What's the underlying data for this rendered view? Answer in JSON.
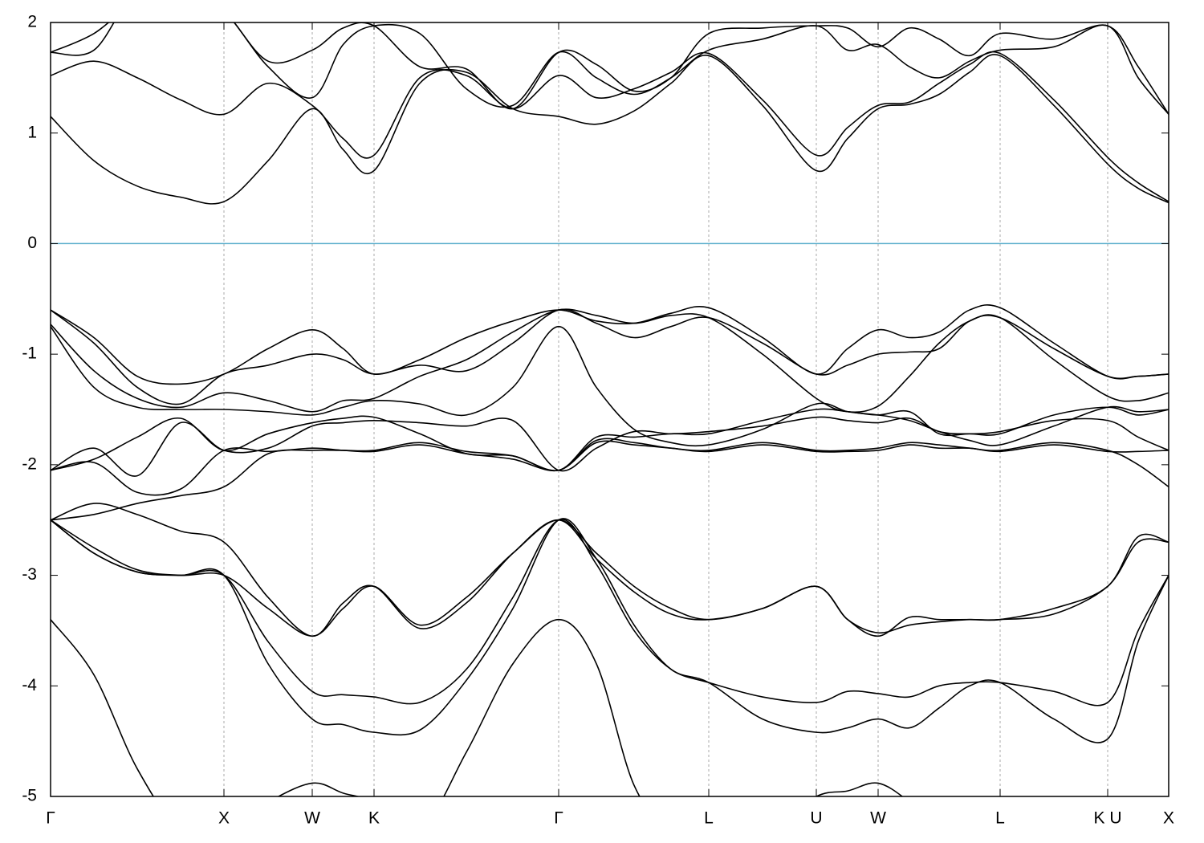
{
  "chart_data": {
    "type": "line",
    "xlim": [
      0,
      13.93
    ],
    "ylim": [
      -5,
      2
    ],
    "yticks": [
      -5,
      -4,
      -3,
      -2,
      -1,
      0,
      1,
      2
    ],
    "xticks": [
      {
        "value": 0,
        "label": "Γ"
      },
      {
        "value": 2.16,
        "label": "X"
      },
      {
        "value": 3.26,
        "label": "W"
      },
      {
        "value": 4.03,
        "label": "K"
      },
      {
        "value": 6.33,
        "label": "Γ"
      },
      {
        "value": 8.2,
        "label": "L"
      },
      {
        "value": 9.54,
        "label": "U"
      },
      {
        "value": 10.31,
        "label": "W"
      },
      {
        "value": 11.83,
        "label": "L"
      },
      {
        "value": 13.17,
        "label": "K U"
      },
      {
        "value": 13.93,
        "label": "X"
      }
    ],
    "xgrid": true,
    "line_color": "#000000",
    "reference_line": 0,
    "reference_color": "#5aaecb",
    "x": [
      0,
      0.54,
      1.08,
      1.62,
      2.16,
      2.71,
      3.26,
      3.645,
      4.03,
      4.6,
      5.18,
      5.76,
      6.33,
      6.8,
      7.27,
      7.73,
      8.2,
      8.87,
      9.54,
      9.93,
      10.31,
      10.7,
      11.07,
      11.45,
      11.83,
      12.5,
      13.17,
      13.55,
      13.93
    ],
    "series": [
      {
        "values": [
          1.15,
          0.75,
          0.52,
          0.42,
          0.38,
          0.75,
          1.22,
          0.85,
          0.66,
          1.45,
          1.55,
          1.22,
          1.15,
          1.08,
          1.2,
          1.45,
          1.7,
          1.25,
          0.66,
          0.95,
          1.22,
          1.26,
          1.35,
          1.55,
          1.7,
          1.25,
          0.72,
          0.5,
          0.37
        ]
      },
      {
        "values": [
          1.52,
          1.65,
          1.5,
          1.3,
          1.17,
          1.45,
          1.25,
          0.95,
          0.8,
          1.5,
          1.52,
          1.22,
          1.52,
          1.32,
          1.4,
          1.55,
          1.72,
          1.3,
          0.8,
          1.05,
          1.25,
          1.28,
          1.45,
          1.62,
          1.72,
          1.3,
          0.78,
          0.55,
          0.38
        ]
      },
      {
        "values": [
          1.73,
          1.9,
          2.2,
          2.3,
          2.1,
          1.6,
          1.32,
          1.8,
          1.97,
          1.9,
          1.4,
          1.25,
          1.73,
          1.5,
          1.35,
          1.5,
          1.75,
          1.85,
          1.97,
          1.75,
          1.8,
          1.6,
          1.5,
          1.65,
          1.75,
          1.78,
          1.97,
          1.5,
          1.17
        ]
      },
      {
        "values": [
          1.73,
          1.75,
          2.3,
          2.3,
          2.1,
          1.65,
          1.75,
          1.95,
          1.97,
          1.6,
          1.58,
          1.22,
          1.73,
          1.62,
          1.38,
          1.5,
          1.9,
          1.95,
          1.97,
          1.95,
          1.78,
          1.95,
          1.85,
          1.7,
          1.9,
          1.85,
          1.97,
          1.6,
          1.17
        ]
      },
      {
        "values": [
          -0.6,
          -0.85,
          -1.2,
          -1.27,
          -1.18,
          -0.95,
          -0.78,
          -0.95,
          -1.18,
          -1.05,
          -0.85,
          -0.7,
          -0.6,
          -0.7,
          -0.72,
          -0.63,
          -0.58,
          -0.85,
          -1.18,
          -0.95,
          -0.78,
          -0.85,
          -0.8,
          -0.6,
          -0.58,
          -0.9,
          -1.2,
          -1.2,
          -1.18
        ]
      },
      {
        "values": [
          -0.6,
          -0.9,
          -1.3,
          -1.45,
          -1.18,
          -1.1,
          -1.0,
          -1.05,
          -1.18,
          -1.1,
          -1.15,
          -0.9,
          -0.6,
          -0.72,
          -0.85,
          -0.75,
          -0.67,
          -0.9,
          -1.18,
          -1.1,
          -1.0,
          -0.98,
          -0.95,
          -0.7,
          -0.67,
          -0.95,
          -1.2,
          -1.2,
          -1.18
        ]
      },
      {
        "values": [
          -0.73,
          -1.15,
          -1.4,
          -1.48,
          -1.35,
          -1.42,
          -1.52,
          -1.42,
          -1.4,
          -1.2,
          -1.05,
          -0.8,
          -0.6,
          -0.65,
          -0.72,
          -0.65,
          -0.67,
          -1.0,
          -1.4,
          -1.52,
          -1.47,
          -1.2,
          -0.9,
          -0.7,
          -0.67,
          -1.05,
          -1.38,
          -1.42,
          -1.35
        ]
      },
      {
        "values": [
          -0.75,
          -1.3,
          -1.48,
          -1.5,
          -1.5,
          -1.52,
          -1.55,
          -1.48,
          -1.42,
          -1.45,
          -1.55,
          -1.3,
          -0.75,
          -1.3,
          -1.68,
          -1.8,
          -1.82,
          -1.68,
          -1.45,
          -1.52,
          -1.55,
          -1.6,
          -1.7,
          -1.78,
          -1.82,
          -1.65,
          -1.48,
          -1.52,
          -1.5
        ]
      },
      {
        "values": [
          -2.05,
          -1.85,
          -2.1,
          -1.62,
          -1.87,
          -1.85,
          -1.65,
          -1.62,
          -1.6,
          -1.62,
          -1.65,
          -1.6,
          -2.05,
          -1.85,
          -1.7,
          -1.72,
          -1.7,
          -1.65,
          -1.57,
          -1.6,
          -1.62,
          -1.58,
          -1.7,
          -1.72,
          -1.7,
          -1.6,
          -1.6,
          -1.75,
          -1.87
        ]
      },
      {
        "values": [
          -2.05,
          -1.95,
          -1.75,
          -1.58,
          -1.87,
          -1.72,
          -1.62,
          -1.58,
          -1.57,
          -1.72,
          -1.9,
          -1.92,
          -2.05,
          -1.75,
          -1.75,
          -1.72,
          -1.72,
          -1.6,
          -1.5,
          -1.52,
          -1.55,
          -1.52,
          -1.72,
          -1.72,
          -1.72,
          -1.55,
          -1.48,
          -1.55,
          -1.5
        ]
      },
      {
        "values": [
          -2.5,
          -2.45,
          -2.35,
          -2.28,
          -2.2,
          -1.9,
          -1.87,
          -1.87,
          -1.87,
          -1.8,
          -1.88,
          -1.92,
          -2.05,
          -1.78,
          -1.8,
          -1.85,
          -1.87,
          -1.8,
          -1.87,
          -1.87,
          -1.85,
          -1.8,
          -1.82,
          -1.85,
          -1.87,
          -1.8,
          -1.87,
          -2.0,
          -2.2
        ]
      },
      {
        "values": [
          -2.05,
          -1.98,
          -2.25,
          -2.22,
          -1.87,
          -1.88,
          -1.85,
          -1.87,
          -1.88,
          -1.82,
          -1.9,
          -1.95,
          -2.05,
          -1.8,
          -1.82,
          -1.85,
          -1.88,
          -1.82,
          -1.88,
          -1.88,
          -1.87,
          -1.82,
          -1.85,
          -1.85,
          -1.88,
          -1.82,
          -1.88,
          -1.88,
          -1.87
        ]
      },
      {
        "values": [
          -2.5,
          -2.75,
          -2.95,
          -3.0,
          -3.0,
          -3.3,
          -3.55,
          -3.3,
          -3.1,
          -3.45,
          -3.2,
          -2.8,
          -2.5,
          -2.8,
          -3.1,
          -3.3,
          -3.4,
          -3.3,
          -3.1,
          -3.4,
          -3.55,
          -3.38,
          -3.4,
          -3.4,
          -3.4,
          -3.35,
          -3.1,
          -2.7,
          -2.7
        ]
      },
      {
        "values": [
          -2.5,
          -2.35,
          -2.45,
          -2.6,
          -2.7,
          -3.2,
          -3.55,
          -3.25,
          -3.1,
          -3.48,
          -3.25,
          -2.8,
          -2.5,
          -2.85,
          -3.15,
          -3.35,
          -3.4,
          -3.3,
          -3.1,
          -3.4,
          -3.52,
          -3.45,
          -3.42,
          -3.4,
          -3.4,
          -3.3,
          -3.1,
          -2.65,
          -2.7
        ]
      },
      {
        "values": [
          -3.4,
          -3.9,
          -4.75,
          -5.3,
          -5.3,
          -5.05,
          -4.88,
          -4.97,
          -5.05,
          -5.3,
          -4.6,
          -3.8,
          -3.4,
          -3.8,
          -4.9,
          -5.3,
          -5.3,
          -5.3,
          -5.0,
          -4.95,
          -4.88,
          -5.05,
          -5.3,
          -5.3,
          -5.3,
          -5.3,
          -5.3,
          -5.3,
          -5.3
        ]
      },
      {
        "values": [
          -2.5,
          -2.8,
          -2.97,
          -3.0,
          -3.0,
          -3.6,
          -4.05,
          -4.08,
          -4.1,
          -4.15,
          -3.85,
          -3.2,
          -2.5,
          -2.9,
          -3.5,
          -3.85,
          -3.97,
          -4.1,
          -4.15,
          -4.05,
          -4.07,
          -4.1,
          -4.0,
          -3.97,
          -3.97,
          -4.05,
          -4.15,
          -3.5,
          -3.0
        ]
      },
      {
        "values": [
          -2.5,
          -2.8,
          -2.97,
          -3.0,
          -3.0,
          -3.8,
          -4.3,
          -4.35,
          -4.42,
          -4.4,
          -3.95,
          -3.3,
          -2.5,
          -2.85,
          -3.45,
          -3.85,
          -3.97,
          -4.3,
          -4.42,
          -4.38,
          -4.3,
          -4.38,
          -4.2,
          -4.0,
          -3.97,
          -4.3,
          -4.48,
          -3.6,
          -3.0
        ]
      }
    ]
  }
}
